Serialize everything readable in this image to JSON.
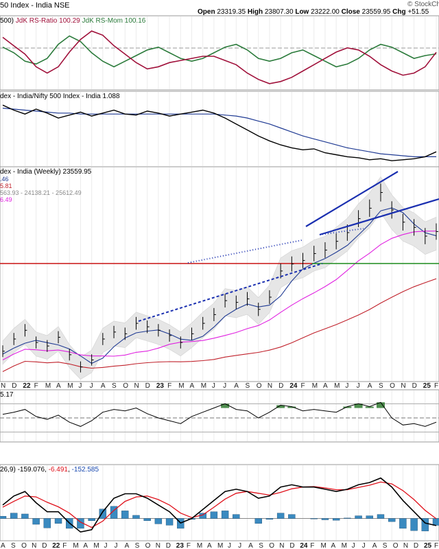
{
  "header": {
    "title": "50 Index - India NSE",
    "ohlc": {
      "open_label": "Open",
      "open": "23319.35",
      "high_label": "High",
      "high": "23807.30",
      "low_label": "Low",
      "low": "23222.00",
      "close_label": "Close",
      "close": "23559.95",
      "chg_label": "Chg",
      "chg": "+51.55"
    },
    "watermark": "© StockCh"
  },
  "panels": {
    "rrg": {
      "label_prefix": "500)",
      "label_ratio": "JdK RS-Ratio 100.29",
      "label_mom": "JdK RS-Mom 100.16"
    },
    "relative": {
      "label": "dex - India/Nifty 500 Index - India 1.088"
    },
    "price": {
      "label": "dex - India (Weekly) 23559.95",
      "ma_lines": [
        ".46",
        "5.81",
        "563.93 - 24138.21 - 25612.49",
        "6.49"
      ]
    },
    "rsi": {
      "label": "5.17"
    },
    "macd": {
      "label_prefix": "26,9)",
      "label_macd": "-159.076",
      "label_signal": "-6.491",
      "label_hist": "-152.585"
    }
  },
  "x_axis": {
    "months_mid": [
      "N",
      "D",
      "22",
      "F",
      "M",
      "A",
      "M",
      "J",
      "J",
      "A",
      "S",
      "O",
      "N",
      "D",
      "23",
      "F",
      "M",
      "A",
      "M",
      "J",
      "J",
      "A",
      "S",
      "O",
      "N",
      "D",
      "24",
      "F",
      "M",
      "A",
      "M",
      "J",
      "J",
      "A",
      "S",
      "O",
      "N",
      "D",
      "25",
      "F"
    ],
    "months_bottom": [
      "A",
      "S",
      "O",
      "N",
      "D",
      "22",
      "F",
      "M",
      "A",
      "M",
      "J",
      "J",
      "A",
      "S",
      "O",
      "N",
      "D",
      "23",
      "F",
      "M",
      "A",
      "M",
      "J",
      "J",
      "A",
      "S",
      "O",
      "N",
      "D",
      "24",
      "F",
      "M",
      "A",
      "M",
      "J",
      "J",
      "A",
      "S",
      "O",
      "N",
      "D",
      "25",
      "F"
    ],
    "years": [
      "22",
      "23",
      "24",
      "25"
    ]
  },
  "colors": {
    "price_bar": "#000000",
    "ma_short": "#1f3a93",
    "ma_mid": "#e020e0",
    "ma_long": "#c0202a",
    "band_fill": "#e6e6e6",
    "trend_blue": "#1a2fb0",
    "support_red": "#c81010",
    "support_green": "#1a8a1a",
    "rrg_ratio": "#a0103a",
    "rrg_mom": "#2a7a3a",
    "rel_line": "#000000",
    "rel_ma": "#1f3a93",
    "rsi_fill": "#2f7a2f",
    "macd_line": "#000000",
    "macd_signal": "#e0101a",
    "macd_hist": "#3a8ac0",
    "macd_label_blue": "#1a4ab0"
  },
  "chart_data": [
    {
      "type": "line",
      "panel": "JdK RS-Ratio / RS-Mom",
      "series": [
        {
          "name": "JdK RS-Ratio",
          "values": [
            101.0,
            100.6,
            100.2,
            99.6,
            99.3,
            99.6,
            100.3,
            100.9,
            101.3,
            101.1,
            100.6,
            100.2,
            99.8,
            99.5,
            99.6,
            99.8,
            99.9,
            100.0,
            100.1,
            100.1,
            99.9,
            99.7,
            99.3,
            99.0,
            98.8,
            98.9,
            99.1,
            99.4,
            99.7,
            100.0,
            100.3,
            100.5,
            100.4,
            100.1,
            99.7,
            99.4,
            99.2,
            99.3,
            99.6,
            100.29
          ]
        },
        {
          "name": "JdK RS-Mom",
          "values": [
            100.4,
            100.2,
            99.9,
            99.8,
            100.0,
            100.5,
            100.8,
            100.6,
            100.2,
            99.9,
            99.7,
            99.9,
            100.1,
            100.3,
            100.4,
            100.2,
            100.0,
            99.9,
            100.0,
            100.2,
            100.4,
            100.5,
            100.3,
            100.0,
            99.9,
            100.0,
            100.2,
            100.3,
            100.1,
            99.9,
            99.7,
            99.8,
            100.0,
            100.3,
            100.5,
            100.4,
            100.2,
            100.0,
            100.1,
            100.16
          ]
        }
      ]
    },
    {
      "type": "line",
      "panel": "Nifty / Nifty 500 ratio",
      "series": [
        {
          "name": "Ratio",
          "values": [
            1.135,
            1.13,
            1.126,
            1.131,
            1.127,
            1.122,
            1.125,
            1.128,
            1.124,
            1.127,
            1.13,
            1.126,
            1.125,
            1.129,
            1.127,
            1.124,
            1.126,
            1.128,
            1.13,
            1.127,
            1.122,
            1.116,
            1.11,
            1.104,
            1.099,
            1.095,
            1.092,
            1.09,
            1.091,
            1.087,
            1.085,
            1.083,
            1.082,
            1.08,
            1.081,
            1.079,
            1.08,
            1.081,
            1.083,
            1.088
          ]
        },
        {
          "name": "Moving average",
          "values": [
            1.132,
            1.131,
            1.13,
            1.129,
            1.128,
            1.127,
            1.127,
            1.126,
            1.126,
            1.126,
            1.126,
            1.126,
            1.126,
            1.126,
            1.126,
            1.126,
            1.126,
            1.126,
            1.126,
            1.126,
            1.125,
            1.124,
            1.122,
            1.119,
            1.116,
            1.112,
            1.108,
            1.104,
            1.101,
            1.098,
            1.095,
            1.092,
            1.09,
            1.088,
            1.086,
            1.085,
            1.084,
            1.083,
            1.083,
            1.083
          ]
        }
      ]
    },
    {
      "type": "line",
      "panel": "Price (Weekly)",
      "x": [
        "N",
        "D",
        "22",
        "F",
        "M",
        "A",
        "M",
        "J",
        "J",
        "A",
        "S",
        "O",
        "N",
        "D",
        "23",
        "F",
        "M",
        "A",
        "M",
        "J",
        "J",
        "A",
        "S",
        "O",
        "N",
        "D",
        "24",
        "F",
        "M",
        "A",
        "M",
        "J",
        "J",
        "A",
        "S",
        "O",
        "N",
        "D",
        "25",
        "F"
      ],
      "series": [
        {
          "name": "Close",
          "values": [
            16700,
            17400,
            17900,
            17200,
            17000,
            17500,
            16500,
            15800,
            16200,
            17400,
            17800,
            17700,
            18300,
            18100,
            17900,
            17600,
            17200,
            17700,
            18300,
            18800,
            19600,
            19500,
            19700,
            19100,
            19800,
            21300,
            21700,
            21900,
            22300,
            22500,
            23000,
            23500,
            24300,
            24900,
            25800,
            24800,
            24100,
            23800,
            23300,
            23559.95
          ]
        }
      ],
      "ylim": [
        15000,
        27000
      ]
    },
    {
      "type": "area",
      "panel": "RSI",
      "series": [
        {
          "name": "RSI",
          "values": [
            55,
            58,
            62,
            52,
            48,
            54,
            44,
            38,
            46,
            58,
            62,
            60,
            64,
            56,
            50,
            46,
            42,
            52,
            58,
            64,
            70,
            62,
            60,
            50,
            58,
            68,
            66,
            60,
            62,
            60,
            58,
            66,
            70,
            66,
            72,
            50,
            40,
            42,
            38,
            44
          ]
        }
      ],
      "ylim": [
        20,
        80
      ]
    },
    {
      "type": "line",
      "panel": "MACD",
      "series": [
        {
          "name": "MACD",
          "values": [
            300,
            500,
            600,
            350,
            150,
            150,
            -100,
            -300,
            -250,
            150,
            450,
            550,
            550,
            450,
            300,
            150,
            -100,
            0,
            200,
            400,
            600,
            650,
            600,
            450,
            500,
            700,
            750,
            700,
            700,
            650,
            600,
            650,
            750,
            800,
            900,
            700,
            400,
            150,
            -100,
            -159.076
          ]
        },
        {
          "name": "Signal",
          "values": [
            250,
            380,
            500,
            480,
            360,
            260,
            120,
            -80,
            -200,
            -60,
            180,
            380,
            480,
            500,
            420,
            300,
            120,
            20,
            80,
            250,
            430,
            560,
            600,
            560,
            520,
            580,
            660,
            700,
            710,
            680,
            640,
            640,
            690,
            740,
            810,
            770,
            620,
            420,
            180,
            -6.491
          ]
        },
        {
          "name": "Histogram",
          "values": [
            50,
            120,
            100,
            -130,
            -210,
            -110,
            -220,
            -220,
            -50,
            210,
            270,
            170,
            70,
            -50,
            -120,
            -150,
            -220,
            -20,
            120,
            150,
            170,
            90,
            0,
            -110,
            -20,
            120,
            90,
            0,
            -10,
            -30,
            -40,
            10,
            60,
            60,
            90,
            -70,
            -220,
            -270,
            -280,
            -152.585
          ]
        }
      ]
    }
  ]
}
